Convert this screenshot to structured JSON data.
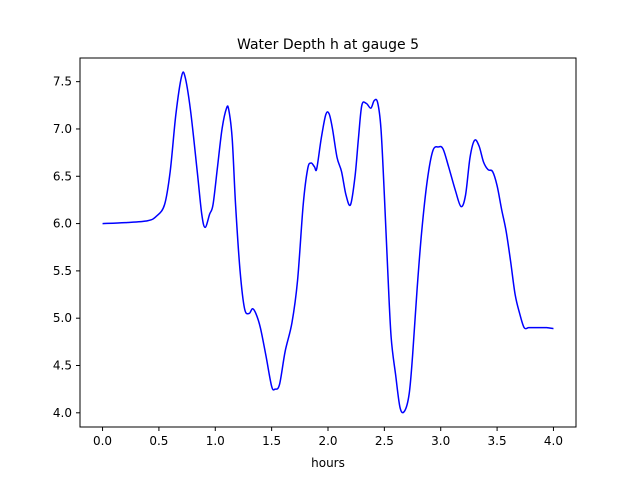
{
  "chart_data": {
    "type": "line",
    "title": "Water Depth h at gauge 5",
    "xlabel": "hours",
    "ylabel": "",
    "xlim": [
      -0.2,
      4.2
    ],
    "ylim": [
      3.85,
      7.75
    ],
    "xticks": [
      0.0,
      0.5,
      1.0,
      1.5,
      2.0,
      2.5,
      3.0,
      3.5,
      4.0
    ],
    "xtick_labels": [
      "0.0",
      "0.5",
      "1.0",
      "1.5",
      "2.0",
      "2.5",
      "3.0",
      "3.5",
      "4.0"
    ],
    "yticks": [
      4.0,
      4.5,
      5.0,
      5.5,
      6.0,
      6.5,
      7.0,
      7.5
    ],
    "ytick_labels": [
      "4.0",
      "4.5",
      "5.0",
      "5.5",
      "6.0",
      "6.5",
      "7.0",
      "7.5"
    ],
    "grid": false,
    "series": [
      {
        "name": "",
        "color": "#0000ff",
        "x": [
          0.0,
          0.2,
          0.4,
          0.48,
          0.55,
          0.6,
          0.65,
          0.7,
          0.73,
          0.78,
          0.84,
          0.88,
          0.91,
          0.95,
          0.98,
          1.02,
          1.06,
          1.1,
          1.12,
          1.15,
          1.18,
          1.22,
          1.26,
          1.3,
          1.33,
          1.36,
          1.4,
          1.45,
          1.5,
          1.53,
          1.57,
          1.62,
          1.68,
          1.73,
          1.78,
          1.82,
          1.85,
          1.88,
          1.9,
          1.94,
          1.98,
          2.01,
          2.04,
          2.08,
          2.12,
          2.16,
          2.2,
          2.24,
          2.27,
          2.3,
          2.34,
          2.38,
          2.41,
          2.44,
          2.47,
          2.5,
          2.53,
          2.56,
          2.6,
          2.64,
          2.68,
          2.72,
          2.75,
          2.79,
          2.83,
          2.88,
          2.93,
          2.98,
          3.02,
          3.07,
          3.13,
          3.18,
          3.22,
          3.26,
          3.3,
          3.34,
          3.38,
          3.42,
          3.46,
          3.5,
          3.54,
          3.58,
          3.62,
          3.66,
          3.7,
          3.74,
          3.78,
          3.82,
          3.86,
          3.9,
          3.94,
          4.0
        ],
        "y": [
          6.0,
          6.01,
          6.03,
          6.08,
          6.2,
          6.55,
          7.15,
          7.55,
          7.56,
          7.2,
          6.55,
          6.1,
          5.96,
          6.1,
          6.2,
          6.6,
          7.0,
          7.22,
          7.2,
          6.9,
          6.2,
          5.5,
          5.1,
          5.05,
          5.1,
          5.05,
          4.9,
          4.6,
          4.28,
          4.25,
          4.3,
          4.65,
          4.95,
          5.4,
          6.2,
          6.58,
          6.64,
          6.6,
          6.58,
          6.9,
          7.15,
          7.16,
          7.0,
          6.7,
          6.55,
          6.3,
          6.2,
          6.5,
          6.9,
          7.25,
          7.27,
          7.22,
          7.3,
          7.28,
          7.0,
          6.3,
          5.5,
          4.8,
          4.4,
          4.05,
          4.02,
          4.2,
          4.6,
          5.3,
          5.9,
          6.45,
          6.77,
          6.81,
          6.79,
          6.6,
          6.35,
          6.18,
          6.3,
          6.7,
          6.88,
          6.82,
          6.65,
          6.57,
          6.55,
          6.4,
          6.15,
          5.92,
          5.6,
          5.25,
          5.05,
          4.9,
          4.9,
          4.9,
          4.9,
          4.9,
          4.9,
          4.89
        ]
      }
    ]
  }
}
